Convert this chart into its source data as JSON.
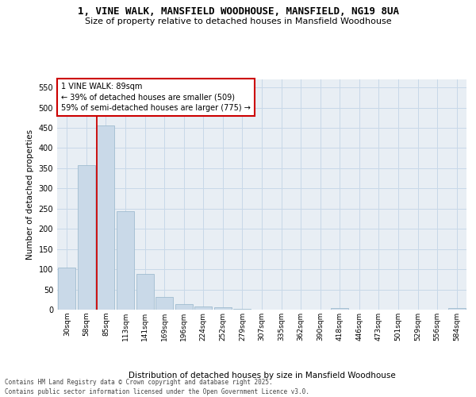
{
  "title": "1, VINE WALK, MANSFIELD WOODHOUSE, MANSFIELD, NG19 8UA",
  "subtitle": "Size of property relative to detached houses in Mansfield Woodhouse",
  "xlabel": "Distribution of detached houses by size in Mansfield Woodhouse",
  "ylabel": "Number of detached properties",
  "categories": [
    "30sqm",
    "58sqm",
    "85sqm",
    "113sqm",
    "141sqm",
    "169sqm",
    "196sqm",
    "224sqm",
    "252sqm",
    "279sqm",
    "307sqm",
    "335sqm",
    "362sqm",
    "390sqm",
    "418sqm",
    "446sqm",
    "473sqm",
    "501sqm",
    "529sqm",
    "556sqm",
    "584sqm"
  ],
  "values": [
    105,
    357,
    456,
    244,
    89,
    31,
    13,
    8,
    5,
    2,
    0,
    0,
    0,
    0,
    4,
    0,
    0,
    0,
    0,
    0,
    4
  ],
  "bar_color": "#c9d9e8",
  "bar_edge_color": "#a0bcd0",
  "grid_color": "#c8d8e8",
  "bg_color": "#e8eef4",
  "vline_x_index": 2,
  "vline_color": "#cc0000",
  "annotation_text": "1 VINE WALK: 89sqm\n← 39% of detached houses are smaller (509)\n59% of semi-detached houses are larger (775) →",
  "annotation_box_color": "#cc0000",
  "ylim": [
    0,
    570
  ],
  "yticks": [
    0,
    50,
    100,
    150,
    200,
    250,
    300,
    350,
    400,
    450,
    500,
    550
  ],
  "footer_line1": "Contains HM Land Registry data © Crown copyright and database right 2025.",
  "footer_line2": "Contains public sector information licensed under the Open Government Licence v3.0."
}
